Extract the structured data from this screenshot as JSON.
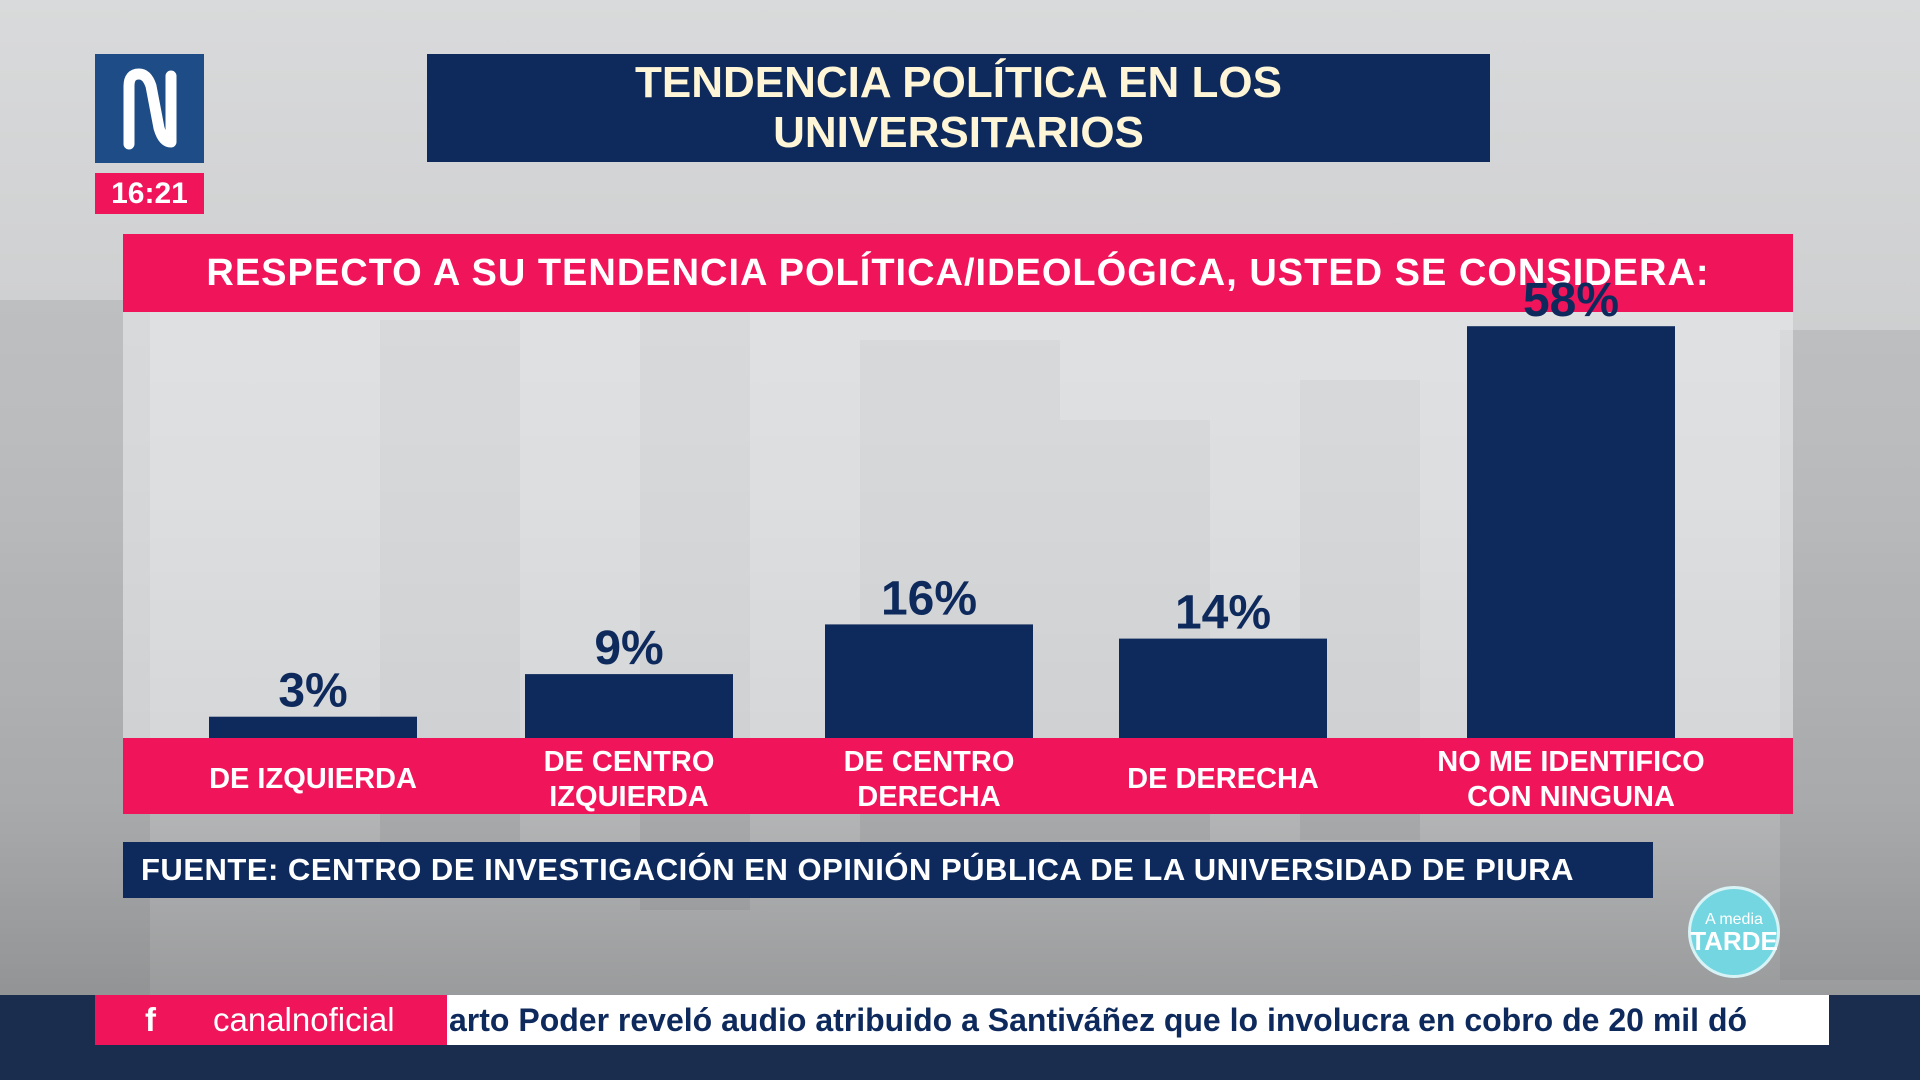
{
  "channel": {
    "logo_icon": "channel-n-logo-icon",
    "clock": "16:21"
  },
  "header": {
    "title_line1": "TENDENCIA POLÍTICA EN LOS",
    "title_line2": "UNIVERSITARIOS"
  },
  "question": "RESPECTO A SU TENDENCIA POLÍTICA/IDEOLÓGICA, USTED SE CONSIDERA:",
  "source": "FUENTE: CENTRO DE INVESTIGACIÓN EN OPINIÓN PÚBLICA DE LA UNIVERSIDAD DE PIURA",
  "show_logo": {
    "line1": "A media",
    "line2": "TARDE"
  },
  "ticker": {
    "social_icon": "facebook-icon",
    "social_handle": "canalnoficial",
    "headline": "arto Poder reveló audio atribuido a Santiváñez que lo involucra en cobro de 20 mil dó"
  },
  "colors": {
    "bar": "#0e2a5c",
    "accent": "#f0145a",
    "title_text": "#fff6d8"
  },
  "chart_data": {
    "type": "bar",
    "categories": [
      [
        "DE IZQUIERDA"
      ],
      [
        "DE CENTRO",
        "IZQUIERDA"
      ],
      [
        "DE CENTRO",
        "DERECHA"
      ],
      [
        "DE DERECHA"
      ],
      [
        "NO ME IDENTIFICO",
        "CON NINGUNA"
      ]
    ],
    "values": [
      3,
      9,
      16,
      14,
      58
    ],
    "value_labels": [
      "3%",
      "9%",
      "16%",
      "14%",
      "58%"
    ],
    "unit": "%",
    "ylim": [
      0,
      60
    ],
    "grid": false,
    "legend": "none"
  }
}
